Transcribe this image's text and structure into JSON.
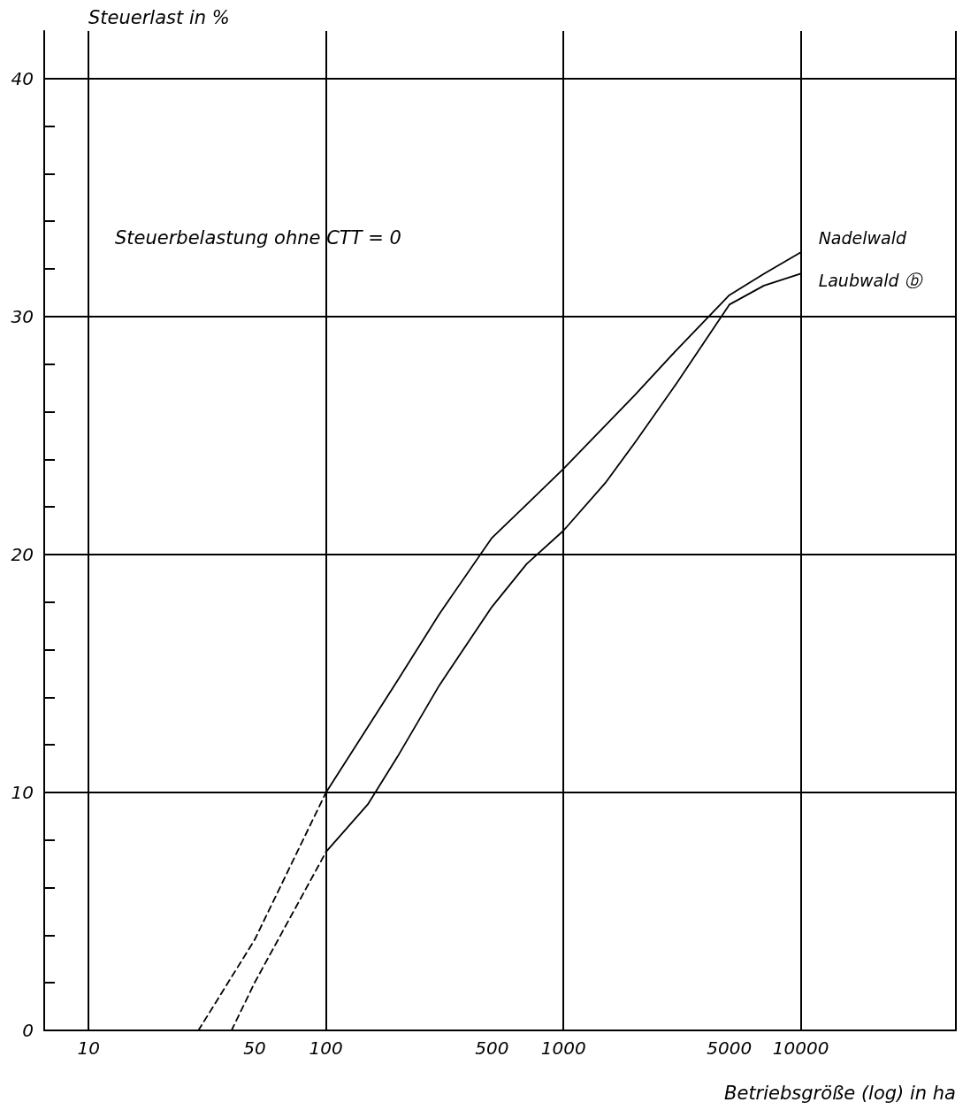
{
  "chart_data": {
    "type": "line",
    "ylabel": "Steuerlast in %",
    "xlabel": "Betriebsgröße (log) in ha",
    "annotations": [
      "Steuerbelastung ohne CTT = 0"
    ],
    "log": "x",
    "xlim": [
      6.5,
      45000
    ],
    "xticks": [
      10,
      50,
      100,
      500,
      1000,
      5000,
      10000
    ],
    "ylim": [
      0,
      42
    ],
    "yticks": [
      0,
      {
        "value": 2,
        "label": null
      },
      {
        "value": 4,
        "label": null
      },
      {
        "value": 6,
        "label": null
      },
      {
        "value": 8,
        "label": null
      },
      10,
      {
        "value": 12,
        "label": null
      },
      {
        "value": 14,
        "label": null
      },
      {
        "value": 16,
        "label": null
      },
      {
        "value": 18,
        "label": null
      },
      20,
      {
        "value": 22,
        "label": null
      },
      {
        "value": 24,
        "label": null
      },
      {
        "value": 26,
        "label": null
      },
      {
        "value": 28,
        "label": null
      },
      30,
      {
        "value": 32,
        "label": null
      },
      {
        "value": 34,
        "label": null
      },
      {
        "value": 36,
        "label": null
      },
      {
        "value": 38,
        "label": null
      },
      40
    ],
    "grid": true,
    "legend": false,
    "marker": "none",
    "series": [
      {
        "color": "#000000",
        "line_style": "dashed",
        "x": [
          29,
          50,
          100
        ],
        "values": [
          0,
          3.8,
          10
        ]
      },
      {
        "color": "#000000",
        "line_style": "dashed",
        "x": [
          40,
          50,
          100
        ],
        "values": [
          0,
          2,
          7.5
        ]
      },
      {
        "name": "Nadelwald",
        "color": "#000000",
        "line_style": "solid",
        "x": [
          100,
          200,
          300,
          500,
          700,
          1000,
          2000,
          3000,
          5000,
          7000,
          10000
        ],
        "values": [
          10,
          14.7,
          17.5,
          20.7,
          22.1,
          23.6,
          26.7,
          28.6,
          30.9,
          31.8,
          32.7
        ]
      },
      {
        "name": "Laubwald ⓑ",
        "color": "#000000",
        "line_style": "solid",
        "x": [
          100,
          150,
          200,
          300,
          500,
          700,
          1000,
          1500,
          2000,
          3000,
          5000,
          7000,
          10000
        ],
        "values": [
          7.5,
          9.5,
          11.5,
          14.5,
          17.8,
          19.6,
          21,
          23,
          24.7,
          27.2,
          30.5,
          31.3,
          31.8
        ]
      }
    ]
  }
}
